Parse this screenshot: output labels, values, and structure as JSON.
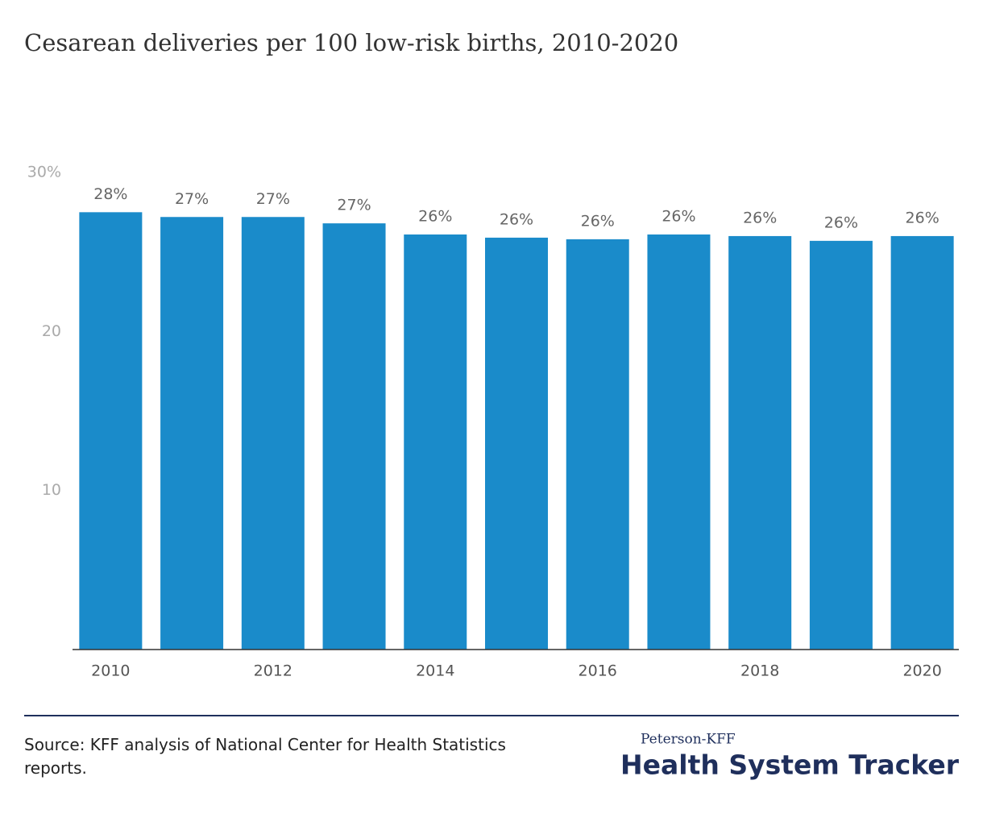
{
  "chart_data": {
    "type": "bar",
    "title": "Cesarean deliveries per 100 low-risk births, 2010-2020",
    "categories": [
      "2010",
      null,
      "2012",
      null,
      "2014",
      null,
      "2016",
      null,
      "2018",
      null,
      "2020"
    ],
    "values": [
      27.5,
      27.2,
      27.2,
      26.8,
      26.1,
      25.9,
      25.8,
      26.1,
      26.0,
      25.7,
      26.0
    ],
    "value_labels": [
      "28%",
      "27%",
      "27%",
      "27%",
      "26%",
      "26%",
      "26%",
      "26%",
      "26%",
      "26%",
      "26%"
    ],
    "color": "#1a8bca",
    "ylim": [
      0,
      30
    ],
    "yticks": [
      10,
      20,
      {
        "value": 30,
        "label": "30%"
      }
    ],
    "grid": false
  },
  "source": "Source: KFF analysis of National Center for Health Statistics reports.",
  "branding": {
    "small": "Peterson-KFF",
    "large": "Health System Tracker"
  }
}
